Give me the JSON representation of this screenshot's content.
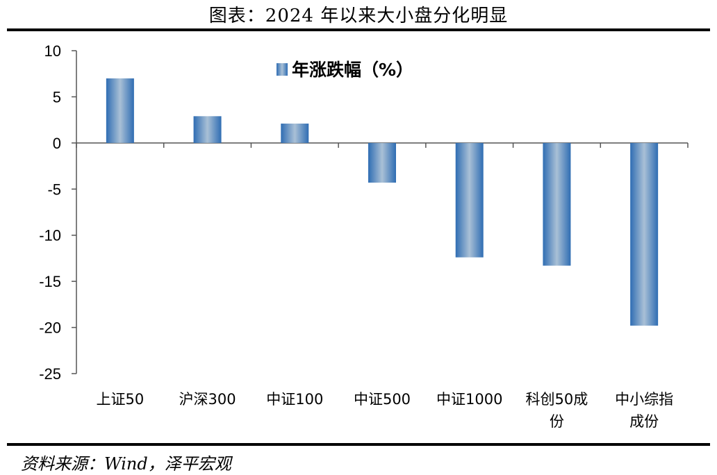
{
  "title": "图表：2024 年以来大小盘分化明显",
  "source": "资料来源：Wind，泽平宏观",
  "colors": {
    "bar_edge": "#2f6db3",
    "bar_center": "#a9c0d6",
    "axis": "#555555"
  },
  "chart_data": {
    "type": "bar",
    "categories": [
      "上证50",
      "沪深300",
      "中证100",
      "中证500",
      "中证1000",
      "科创50成份",
      "中小综指成份"
    ],
    "category_lines": [
      [
        "上证50"
      ],
      [
        "沪深300"
      ],
      [
        "中证100"
      ],
      [
        "中证500"
      ],
      [
        "中证1000"
      ],
      [
        "科创50成",
        "份"
      ],
      [
        "中小综指",
        "成份"
      ]
    ],
    "series": [
      {
        "name": "年涨跌幅（%）",
        "values": [
          7.0,
          2.9,
          2.1,
          -4.3,
          -12.4,
          -13.3,
          -19.8
        ]
      }
    ],
    "ylim": [
      -25,
      10
    ],
    "yticks": [
      10,
      5,
      0,
      -5,
      -10,
      -15,
      -20,
      -25
    ],
    "legend_position": "top-center",
    "grid": false
  }
}
